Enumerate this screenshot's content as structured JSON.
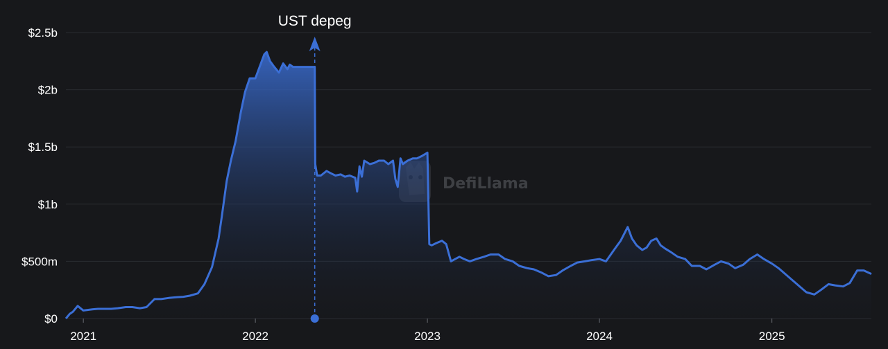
{
  "watermark": "DefiLlama",
  "chart_data": {
    "type": "area",
    "title": "",
    "xlabel": "",
    "ylabel": "",
    "x_ticks": [
      "2021",
      "2022",
      "2023",
      "2024",
      "2025"
    ],
    "y_ticks": [
      "$0",
      "$500m",
      "$1b",
      "$1.5b",
      "$2b",
      "$2.5b"
    ],
    "x_range": [
      "2020-11-25",
      "2025-07-31"
    ],
    "y_range": [
      0,
      2500
    ],
    "y_unit": "$m",
    "grid": true,
    "legend": "none",
    "color": "#3b6fd6",
    "annotation": {
      "label": "UST depeg",
      "date": "2022-05-07"
    },
    "x": [
      "2020-11-25",
      "2020-12-03",
      "2020-12-10",
      "2020-12-20",
      "2021-01-01",
      "2021-01-10",
      "2021-01-20",
      "2021-02-01",
      "2021-02-15",
      "2021-03-01",
      "2021-03-15",
      "2021-04-01",
      "2021-04-15",
      "2021-05-01",
      "2021-05-15",
      "2021-06-01",
      "2021-06-15",
      "2021-07-01",
      "2021-07-15",
      "2021-08-01",
      "2021-08-15",
      "2021-09-01",
      "2021-09-15",
      "2021-10-01",
      "2021-10-15",
      "2021-10-22",
      "2021-11-01",
      "2021-11-10",
      "2021-11-20",
      "2021-12-01",
      "2021-12-10",
      "2021-12-20",
      "2022-01-01",
      "2022-01-10",
      "2022-01-20",
      "2022-01-25",
      "2022-02-01",
      "2022-02-10",
      "2022-02-20",
      "2022-03-01",
      "2022-03-10",
      "2022-03-15",
      "2022-03-22",
      "2022-04-01",
      "2022-04-10",
      "2022-04-20",
      "2022-05-01",
      "2022-05-07",
      "2022-05-08",
      "2022-05-12",
      "2022-05-20",
      "2022-06-01",
      "2022-06-10",
      "2022-06-20",
      "2022-07-01",
      "2022-07-10",
      "2022-07-20",
      "2022-08-01",
      "2022-08-05",
      "2022-08-10",
      "2022-08-15",
      "2022-08-20",
      "2022-09-01",
      "2022-09-10",
      "2022-09-20",
      "2022-10-01",
      "2022-10-10",
      "2022-10-20",
      "2022-10-25",
      "2022-10-30",
      "2022-11-05",
      "2022-11-10",
      "2022-11-20",
      "2022-12-01",
      "2022-12-10",
      "2022-12-20",
      "2023-01-01",
      "2023-01-05",
      "2023-01-10",
      "2023-01-20",
      "2023-02-01",
      "2023-02-10",
      "2023-02-20",
      "2023-03-01",
      "2023-03-10",
      "2023-03-20",
      "2023-04-01",
      "2023-04-15",
      "2023-05-01",
      "2023-05-15",
      "2023-06-01",
      "2023-06-15",
      "2023-07-01",
      "2023-07-15",
      "2023-08-01",
      "2023-08-15",
      "2023-09-01",
      "2023-09-15",
      "2023-10-01",
      "2023-10-15",
      "2023-11-01",
      "2023-11-15",
      "2023-12-01",
      "2023-12-15",
      "2024-01-01",
      "2024-01-15",
      "2024-02-01",
      "2024-02-15",
      "2024-03-01",
      "2024-03-10",
      "2024-03-20",
      "2024-04-01",
      "2024-04-10",
      "2024-04-20",
      "2024-05-01",
      "2024-05-10",
      "2024-05-20",
      "2024-06-01",
      "2024-06-15",
      "2024-07-01",
      "2024-07-15",
      "2024-08-01",
      "2024-08-15",
      "2024-09-01",
      "2024-09-15",
      "2024-10-01",
      "2024-10-15",
      "2024-11-01",
      "2024-11-15",
      "2024-12-01",
      "2024-12-15",
      "2025-01-01",
      "2025-01-15",
      "2025-02-01",
      "2025-02-15",
      "2025-03-01",
      "2025-03-15",
      "2025-04-01",
      "2025-04-15",
      "2025-05-01",
      "2025-05-15",
      "2025-06-01",
      "2025-06-15",
      "2025-07-01",
      "2025-07-15",
      "2025-07-31"
    ],
    "values": [
      0,
      40,
      60,
      110,
      70,
      75,
      80,
      85,
      85,
      85,
      90,
      100,
      100,
      90,
      100,
      170,
      170,
      180,
      185,
      190,
      200,
      220,
      300,
      450,
      700,
      900,
      1200,
      1380,
      1550,
      1800,
      1980,
      2100,
      2100,
      2200,
      2310,
      2330,
      2250,
      2200,
      2150,
      2230,
      2180,
      2220,
      2200,
      2200,
      2200,
      2200,
      2200,
      2200,
      1350,
      1250,
      1250,
      1290,
      1270,
      1250,
      1260,
      1240,
      1250,
      1230,
      1110,
      1330,
      1240,
      1380,
      1350,
      1360,
      1380,
      1380,
      1350,
      1380,
      1220,
      1150,
      1400,
      1350,
      1380,
      1400,
      1400,
      1420,
      1450,
      650,
      640,
      660,
      680,
      650,
      500,
      520,
      540,
      520,
      500,
      520,
      540,
      560,
      560,
      520,
      500,
      460,
      440,
      430,
      400,
      370,
      380,
      420,
      460,
      490,
      500,
      510,
      520,
      500,
      600,
      680,
      800,
      700,
      640,
      600,
      620,
      680,
      700,
      640,
      610,
      580,
      540,
      520,
      460,
      460,
      430,
      470,
      500,
      480,
      440,
      470,
      520,
      560,
      520,
      480,
      440,
      380,
      330,
      280,
      230,
      210,
      250,
      300,
      290,
      280,
      310,
      420,
      420,
      390
    ]
  }
}
